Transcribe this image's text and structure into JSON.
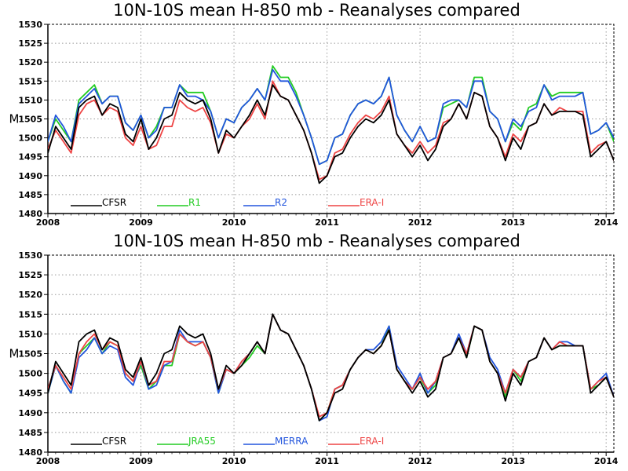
{
  "chart_data": [
    {
      "type": "line",
      "title": "10N-10S mean H-850 mb - Reanalyses compared",
      "ylabel": "M",
      "xlabel": "",
      "ylim": [
        1480,
        1530
      ],
      "yticks": [
        1480,
        1485,
        1490,
        1495,
        1500,
        1505,
        1510,
        1515,
        1520,
        1525,
        1530
      ],
      "xlim": [
        2008,
        2014.083
      ],
      "xticks": [
        2008,
        2009,
        2010,
        2011,
        2012,
        2013,
        2014
      ],
      "x_note": "monthly values Jan 2008 - Feb 2014",
      "grid": true,
      "legend_position": "bottom-left, inside plot",
      "series": [
        {
          "name": "CFSR",
          "color": "#000000",
          "values": [
            1496,
            1503,
            1500,
            1497,
            1508,
            1510,
            1511,
            1506,
            1509,
            1508,
            1501,
            1499,
            1505,
            1497,
            1500,
            1505,
            1506,
            1512,
            1510,
            1509,
            1510,
            1505,
            1496,
            1502,
            1500,
            1503,
            1506,
            1510,
            1506,
            1514,
            1511,
            1510,
            1506,
            1502,
            1496,
            1488,
            1490,
            1495,
            1496,
            1500,
            1503,
            1505,
            1504,
            1506,
            1510,
            1501,
            1498,
            1495,
            1498,
            1494,
            1497,
            1503,
            1505,
            1509,
            1505,
            1512,
            1511,
            1503,
            1500,
            1494,
            1500,
            1497,
            1503,
            1504,
            1509,
            1506,
            1507,
            1507,
            1507,
            1506,
            1495,
            1497,
            1499,
            1494
          ]
        },
        {
          "name": "R1",
          "color": "#22cc22",
          "values": [
            1499,
            1505,
            1502,
            1499,
            1510,
            1512,
            1514,
            1509,
            1511,
            1511,
            1504,
            1502,
            1506,
            1500,
            1503,
            1508,
            1508,
            1514,
            1512,
            1512,
            1512,
            1507,
            1500,
            1505,
            1504,
            1508,
            1510,
            1513,
            1510,
            1519,
            1516,
            1516,
            1512,
            1506,
            1500,
            1493,
            1494,
            1500,
            1501,
            1506,
            1509,
            1510,
            1509,
            1511,
            1516,
            1506,
            1502,
            1499,
            1503,
            1499,
            1500,
            1508,
            1509,
            1510,
            1508,
            1516,
            1516,
            1507,
            1505,
            1499,
            1504,
            1502,
            1508,
            1509,
            1514,
            1511,
            1512,
            1512,
            1512,
            1512,
            1501,
            1502,
            1504,
            1499
          ]
        },
        {
          "name": "R2",
          "color": "#2255dd",
          "values": [
            1499,
            1506,
            1503,
            1499,
            1509,
            1511,
            1513,
            1509,
            1511,
            1511,
            1504,
            1502,
            1506,
            1500,
            1502,
            1508,
            1508,
            1514,
            1511,
            1511,
            1510,
            1507,
            1500,
            1505,
            1504,
            1508,
            1510,
            1513,
            1510,
            1518,
            1515,
            1515,
            1511,
            1506,
            1500,
            1493,
            1494,
            1500,
            1501,
            1506,
            1509,
            1510,
            1509,
            1511,
            1516,
            1506,
            1502,
            1499,
            1503,
            1499,
            1500,
            1509,
            1510,
            1510,
            1508,
            1515,
            1515,
            1507,
            1505,
            1499,
            1505,
            1503,
            1507,
            1508,
            1514,
            1510,
            1511,
            1511,
            1511,
            1512,
            1501,
            1502,
            1504,
            1500
          ]
        },
        {
          "name": "ERA-I",
          "color": "#ee4444",
          "values": [
            1497,
            1502,
            1499,
            1496,
            1506,
            1509,
            1510,
            1506,
            1508,
            1507,
            1500,
            1498,
            1503,
            1497,
            1498,
            1503,
            1503,
            1510,
            1508,
            1507,
            1508,
            1504,
            1496,
            1501,
            1500,
            1503,
            1505,
            1509,
            1505,
            1515,
            1511,
            1510,
            1506,
            1502,
            1496,
            1489,
            1490,
            1496,
            1497,
            1501,
            1504,
            1506,
            1505,
            1507,
            1511,
            1501,
            1498,
            1496,
            1499,
            1496,
            1498,
            1504,
            1505,
            1509,
            1505,
            1512,
            1511,
            1503,
            1500,
            1495,
            1501,
            1499,
            1503,
            1504,
            1509,
            1506,
            1508,
            1507,
            1507,
            1507,
            1496,
            1498,
            1499,
            1494
          ]
        }
      ]
    },
    {
      "type": "line",
      "title": "10N-10S mean H-850 mb - Reanalyses compared",
      "ylabel": "M",
      "xlabel": "",
      "ylim": [
        1480,
        1530
      ],
      "yticks": [
        1480,
        1485,
        1490,
        1495,
        1500,
        1505,
        1510,
        1515,
        1520,
        1525,
        1530
      ],
      "xlim": [
        2008,
        2014.083
      ],
      "xticks": [
        2008,
        2009,
        2010,
        2011,
        2012,
        2013,
        2014
      ],
      "x_note": "monthly values Jan 2008 - Feb 2014",
      "grid": true,
      "legend_position": "bottom-left, inside plot",
      "series": [
        {
          "name": "CFSR",
          "color": "#000000",
          "values": [
            1495,
            1503,
            1500,
            1497,
            1508,
            1510,
            1511,
            1506,
            1509,
            1508,
            1501,
            1499,
            1504,
            1497,
            1500,
            1505,
            1506,
            1512,
            1510,
            1509,
            1510,
            1505,
            1496,
            1502,
            1500,
            1502,
            1505,
            1508,
            1505,
            1515,
            1511,
            1510,
            1506,
            1502,
            1496,
            1488,
            1490,
            1495,
            1496,
            1501,
            1504,
            1506,
            1505,
            1507,
            1511,
            1501,
            1498,
            1495,
            1498,
            1494,
            1496,
            1504,
            1505,
            1509,
            1504,
            1512,
            1511,
            1503,
            1500,
            1493,
            1500,
            1497,
            1503,
            1504,
            1509,
            1506,
            1507,
            1507,
            1507,
            1507,
            1495,
            1497,
            1499,
            1494
          ]
        },
        {
          "name": "JRA55",
          "color": "#22cc22",
          "values": [
            1495,
            1502,
            1498,
            1495,
            1505,
            1507,
            1509,
            1505,
            1508,
            1507,
            1500,
            1498,
            1502,
            1496,
            1498,
            1502,
            1502,
            1510,
            1508,
            1507,
            1508,
            1504,
            1495,
            1501,
            1500,
            1502,
            1504,
            1507,
            1505,
            1515,
            1511,
            1510,
            1506,
            1502,
            1496,
            1488,
            1490,
            1496,
            1497,
            1501,
            1504,
            1506,
            1505,
            1507,
            1512,
            1501,
            1498,
            1496,
            1499,
            1495,
            1497,
            1504,
            1505,
            1509,
            1504,
            1512,
            1511,
            1503,
            1500,
            1494,
            1501,
            1498,
            1503,
            1504,
            1509,
            1506,
            1507,
            1507,
            1507,
            1507,
            1496,
            1497,
            1499,
            1494
          ]
        },
        {
          "name": "MERRA",
          "color": "#2255dd",
          "values": [
            1495,
            1502,
            1498,
            1495,
            1504,
            1506,
            1509,
            1505,
            1507,
            1506,
            1499,
            1497,
            1503,
            1496,
            1497,
            1502,
            1503,
            1511,
            1508,
            1508,
            1508,
            1504,
            1495,
            1501,
            1500,
            1503,
            1505,
            1508,
            1505,
            1515,
            1511,
            1510,
            1506,
            1502,
            1496,
            1488,
            1489,
            1496,
            1497,
            1501,
            1504,
            1506,
            1506,
            1508,
            1512,
            1502,
            1499,
            1496,
            1500,
            1495,
            1498,
            1504,
            1505,
            1510,
            1505,
            1512,
            1511,
            1504,
            1501,
            1495,
            1501,
            1499,
            1503,
            1504,
            1509,
            1506,
            1508,
            1508,
            1507,
            1507,
            1496,
            1498,
            1500,
            1494
          ]
        },
        {
          "name": "ERA-I",
          "color": "#ee4444",
          "values": [
            1496,
            1502,
            1499,
            1496,
            1505,
            1508,
            1510,
            1506,
            1508,
            1507,
            1500,
            1498,
            1503,
            1497,
            1498,
            1503,
            1503,
            1510,
            1508,
            1507,
            1508,
            1504,
            1496,
            1501,
            1500,
            1503,
            1505,
            1508,
            1505,
            1515,
            1511,
            1510,
            1506,
            1502,
            1496,
            1489,
            1490,
            1496,
            1497,
            1501,
            1504,
            1506,
            1505,
            1507,
            1511,
            1501,
            1498,
            1496,
            1499,
            1496,
            1498,
            1504,
            1505,
            1509,
            1505,
            1512,
            1511,
            1503,
            1500,
            1495,
            1501,
            1499,
            1503,
            1504,
            1509,
            1506,
            1508,
            1507,
            1507,
            1507,
            1496,
            1498,
            1499,
            1494
          ]
        }
      ]
    }
  ]
}
